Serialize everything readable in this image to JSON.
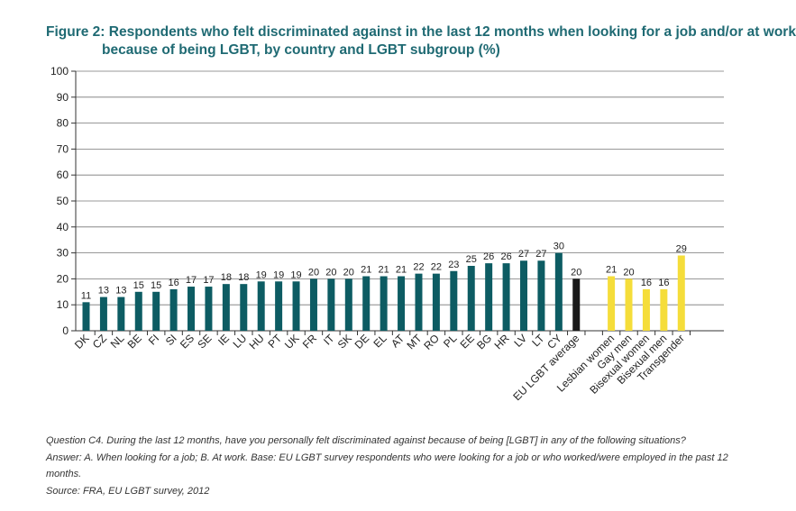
{
  "title": {
    "line1": "Figure 2: Respondents who felt discriminated against in the last 12 months when looking for a job and/or at work",
    "line2": "because of being LGBT, by country and LGBT subgroup (%)"
  },
  "chart_data": {
    "type": "bar",
    "categories": [
      "DK",
      "CZ",
      "NL",
      "BE",
      "FI",
      "SI",
      "ES",
      "SE",
      "IE",
      "LU",
      "HU",
      "PT",
      "UK",
      "FR",
      "IT",
      "SK",
      "DE",
      "EL",
      "AT",
      "MT",
      "RO",
      "PL",
      "EE",
      "BG",
      "HR",
      "LV",
      "LT",
      "CY",
      "EU LGBT average",
      "",
      "Lesbian women",
      "Gay men",
      "Bisexual women",
      "Bisexual men",
      "Transgender"
    ],
    "values": [
      11,
      13,
      13,
      15,
      15,
      16,
      17,
      17,
      18,
      18,
      19,
      19,
      19,
      20,
      20,
      20,
      21,
      21,
      21,
      22,
      22,
      23,
      25,
      26,
      26,
      27,
      27,
      30,
      20,
      null,
      21,
      20,
      16,
      16,
      29
    ],
    "groups": [
      "country",
      "country",
      "country",
      "country",
      "country",
      "country",
      "country",
      "country",
      "country",
      "country",
      "country",
      "country",
      "country",
      "country",
      "country",
      "country",
      "country",
      "country",
      "country",
      "country",
      "country",
      "country",
      "country",
      "country",
      "country",
      "country",
      "country",
      "country",
      "average",
      "gap",
      "subgroup",
      "subgroup",
      "subgroup",
      "subgroup",
      "subgroup"
    ],
    "ylim": [
      0,
      100
    ],
    "yticks": [
      0,
      10,
      20,
      30,
      40,
      50,
      60,
      70,
      80,
      90,
      100
    ],
    "xlabel": "",
    "ylabel": "",
    "grid": true,
    "legend": "none",
    "colors": {
      "country": "#0d5c63",
      "average": "#1a1a1a",
      "subgroup": "#f5dd3a",
      "grid": "#777777"
    }
  },
  "notes": {
    "question": "Question C4. During the last 12 months, have you personally felt discriminated against because of being [LGBT] in any of the following situations?",
    "answer": "Answer: A. When looking for a job; B. At work. Base: EU LGBT survey respondents who were looking for a job or who worked/were employed in the past 12 months.",
    "source": "Source: FRA, EU LGBT survey, 2012"
  }
}
